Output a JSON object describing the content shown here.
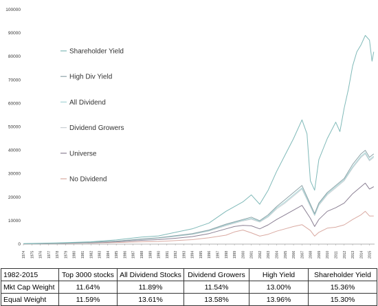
{
  "chart_data": {
    "type": "line",
    "title": "",
    "xlabel": "",
    "ylabel": "",
    "ylim": [
      0,
      100000
    ],
    "y_ticks": [
      0,
      10000,
      20000,
      30000,
      40000,
      50000,
      60000,
      70000,
      80000,
      90000,
      100000
    ],
    "x_ticks": [
      "1974",
      "1975",
      "1976",
      "1977",
      "1978",
      "1979",
      "1980",
      "1981",
      "1982",
      "1983",
      "1984",
      "1985",
      "1986",
      "1987",
      "1988",
      "1989",
      "1990",
      "1991",
      "1992",
      "1993",
      "1994",
      "1995",
      "1996",
      "1997",
      "1998",
      "1999",
      "2000",
      "2001",
      "2002",
      "2003",
      "2004",
      "2005",
      "2006",
      "2007",
      "2008",
      "2009",
      "2010",
      "2011",
      "2012",
      "2013",
      "2014",
      "2015"
    ],
    "grid": false,
    "legend_placement": "left-inside",
    "series": [
      {
        "name": "Shareholder Yield",
        "color": "#7fb9b8",
        "x": [
          1974,
          1978,
          1982,
          1985,
          1988,
          1990,
          1992,
          1994,
          1996,
          1998,
          1999,
          2000,
          2001,
          2002,
          2003,
          2004,
          2005,
          2006,
          2007,
          2007.6,
          2008,
          2008.5,
          2009,
          2010,
          2011,
          2011.5,
          2012,
          2012.5,
          2013,
          2013.5,
          2014,
          2014.5,
          2015,
          2015.3,
          2015.5
        ],
        "y": [
          200,
          500,
          1000,
          1800,
          3000,
          3500,
          5000,
          6500,
          9000,
          14000,
          16000,
          18000,
          21000,
          17000,
          23000,
          31000,
          38000,
          45000,
          53000,
          47000,
          27000,
          23000,
          36000,
          45000,
          52000,
          48000,
          58000,
          66000,
          76000,
          82000,
          85000,
          89000,
          87000,
          78000,
          82000
        ]
      },
      {
        "name": "High Div Yield",
        "color": "#8ea3a8",
        "x": [
          1974,
          1978,
          1982,
          1985,
          1988,
          1990,
          1992,
          1994,
          1996,
          1998,
          1999,
          2000,
          2001,
          2002,
          2003,
          2004,
          2005,
          2006,
          2007,
          2008,
          2008.5,
          2009,
          2010,
          2011,
          2012,
          2013,
          2014,
          2014.5,
          2015,
          2015.5
        ],
        "y": [
          150,
          400,
          800,
          1300,
          2200,
          2700,
          3600,
          4500,
          6000,
          8500,
          9500,
          10500,
          11500,
          10000,
          12500,
          16000,
          19000,
          22000,
          25000,
          17000,
          13000,
          17500,
          22000,
          25000,
          28000,
          34000,
          38500,
          40000,
          37000,
          38500
        ]
      },
      {
        "name": "All Dividend",
        "color": "#a6d5d6",
        "x": [
          1974,
          1978,
          1982,
          1985,
          1988,
          1990,
          1992,
          1994,
          1996,
          1998,
          1999,
          2000,
          2001,
          2002,
          2003,
          2004,
          2005,
          2006,
          2007,
          2008,
          2008.5,
          2009,
          2010,
          2011,
          2012,
          2013,
          2014,
          2014.5,
          2015,
          2015.5
        ],
        "y": [
          150,
          380,
          750,
          1250,
          2100,
          2600,
          3400,
          4300,
          5800,
          8200,
          9200,
          10200,
          11000,
          9700,
          12000,
          15500,
          18000,
          21000,
          24000,
          16500,
          12500,
          17000,
          21500,
          24500,
          27500,
          33000,
          37500,
          39000,
          36000,
          37500
        ]
      },
      {
        "name": "Dividend Growers",
        "color": "#c9cfd3",
        "x": [
          1974,
          1978,
          1982,
          1985,
          1988,
          1990,
          1992,
          1994,
          1996,
          1998,
          1999,
          2000,
          2001,
          2002,
          2003,
          2004,
          2005,
          2006,
          2007,
          2008,
          2008.5,
          2009,
          2010,
          2011,
          2012,
          2013,
          2014,
          2014.5,
          2015,
          2015.5
        ],
        "y": [
          140,
          360,
          700,
          1200,
          2000,
          2500,
          3300,
          4100,
          5600,
          7900,
          8900,
          9900,
          10600,
          9400,
          11600,
          15000,
          17500,
          20500,
          23500,
          16000,
          12200,
          16500,
          21000,
          24000,
          27000,
          32500,
          37000,
          38500,
          35500,
          37000
        ]
      },
      {
        "name": "Universe",
        "color": "#8a7f93",
        "x": [
          1974,
          1978,
          1982,
          1985,
          1988,
          1990,
          1992,
          1994,
          1996,
          1998,
          1999,
          2000,
          2001,
          2002,
          2003,
          2004,
          2005,
          2006,
          2007,
          2008,
          2008.5,
          2009,
          2010,
          2011,
          2012,
          2013,
          2014,
          2014.5,
          2015,
          2015.5
        ],
        "y": [
          120,
          300,
          600,
          1000,
          1600,
          1900,
          2500,
          3200,
          4500,
          6500,
          7500,
          8000,
          7800,
          6500,
          8200,
          10500,
          12500,
          14500,
          16500,
          11000,
          7500,
          10500,
          14000,
          15500,
          17500,
          21500,
          24500,
          26000,
          23500,
          24500
        ]
      },
      {
        "name": "No Dividend",
        "color": "#d9a9a1",
        "x": [
          1974,
          1978,
          1982,
          1985,
          1988,
          1990,
          1992,
          1994,
          1996,
          1998,
          1999,
          2000,
          2001,
          2002,
          2003,
          2004,
          2005,
          2006,
          2007,
          2008,
          2008.5,
          2009,
          2010,
          2011,
          2012,
          2013,
          2014,
          2014.5,
          2015,
          2015.5
        ],
        "y": [
          100,
          250,
          450,
          700,
          1000,
          1100,
          1500,
          1900,
          2700,
          3800,
          5200,
          6000,
          4800,
          3400,
          4200,
          5500,
          6500,
          7500,
          8300,
          5800,
          3400,
          5000,
          6800,
          7200,
          8200,
          10500,
          12500,
          14000,
          12000,
          12000
        ]
      }
    ]
  },
  "table": {
    "headers": [
      "1982-2015",
      "Top 3000 stocks",
      "All Dividend Stocks",
      "Dividend Growers",
      "High Yield",
      "Shareholder Yield"
    ],
    "rows": [
      {
        "label": "Mkt Cap Weight",
        "values": [
          "11.64%",
          "11.89%",
          "11.54%",
          "13.00%",
          "15.36%"
        ]
      },
      {
        "label": "Equal Weight",
        "values": [
          "11.59%",
          "13.61%",
          "13.58%",
          "13.96%",
          "15.30%"
        ]
      }
    ]
  }
}
